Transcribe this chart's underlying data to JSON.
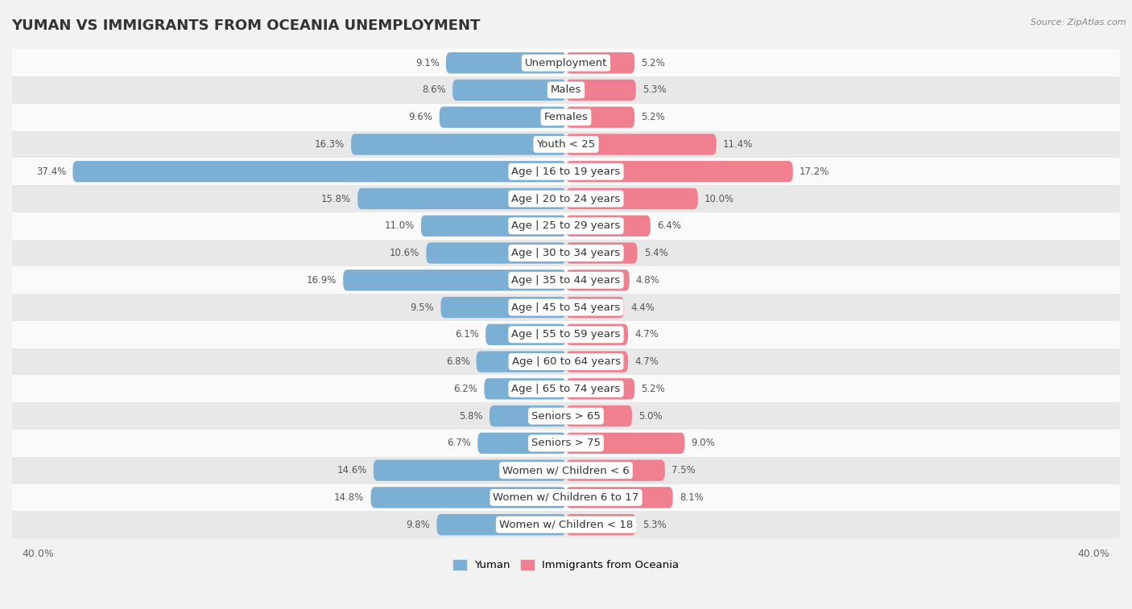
{
  "title": "YUMAN VS IMMIGRANTS FROM OCEANIA UNEMPLOYMENT",
  "source": "Source: ZipAtlas.com",
  "categories": [
    "Unemployment",
    "Males",
    "Females",
    "Youth < 25",
    "Age | 16 to 19 years",
    "Age | 20 to 24 years",
    "Age | 25 to 29 years",
    "Age | 30 to 34 years",
    "Age | 35 to 44 years",
    "Age | 45 to 54 years",
    "Age | 55 to 59 years",
    "Age | 60 to 64 years",
    "Age | 65 to 74 years",
    "Seniors > 65",
    "Seniors > 75",
    "Women w/ Children < 6",
    "Women w/ Children 6 to 17",
    "Women w/ Children < 18"
  ],
  "yuman_values": [
    9.1,
    8.6,
    9.6,
    16.3,
    37.4,
    15.8,
    11.0,
    10.6,
    16.9,
    9.5,
    6.1,
    6.8,
    6.2,
    5.8,
    6.7,
    14.6,
    14.8,
    9.8
  ],
  "oceania_values": [
    5.2,
    5.3,
    5.2,
    11.4,
    17.2,
    10.0,
    6.4,
    5.4,
    4.8,
    4.4,
    4.7,
    4.7,
    5.2,
    5.0,
    9.0,
    7.5,
    8.1,
    5.3
  ],
  "yuman_color": "#7bafd4",
  "oceania_color": "#f08090",
  "axis_limit": 40.0,
  "background_color": "#f2f2f2",
  "row_color_light": "#fafafa",
  "row_color_dark": "#e8e8e8",
  "title_fontsize": 13,
  "label_fontsize": 9.5,
  "value_fontsize": 8.5
}
